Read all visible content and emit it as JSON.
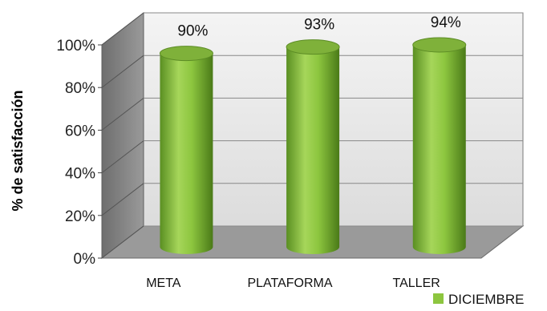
{
  "chart_data": {
    "type": "bar",
    "style": "3d-cylinder",
    "categories": [
      "META",
      "PLATAFORMA",
      "TALLER"
    ],
    "series": [
      {
        "name": "DICIEMBRE",
        "values": [
          90,
          93,
          94
        ],
        "color": "#8dc63f"
      }
    ],
    "data_labels": [
      "90%",
      "93%",
      "94%"
    ],
    "ylabel": "% de satisfacción",
    "ylim": [
      0,
      100
    ],
    "y_ticks": [
      "0%",
      "20%",
      "40%",
      "60%",
      "80%",
      "100%"
    ],
    "grid": true,
    "legend_position": "bottom-right",
    "colors": {
      "bar": "#8dc63f",
      "bar_dark": "#4e7d1b",
      "bar_top": "#7fb13a",
      "wall": "#ececec",
      "floor": "#9a9a9a",
      "side_wall": "#808080"
    }
  }
}
